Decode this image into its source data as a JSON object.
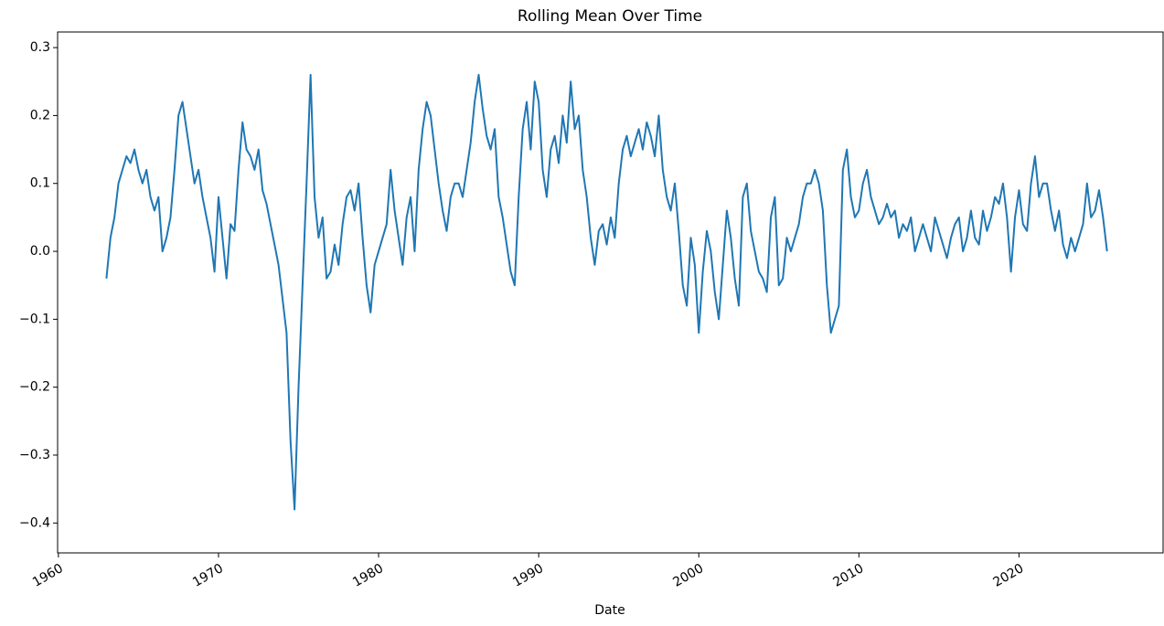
{
  "chart_data": {
    "type": "line",
    "title": "Rolling Mean Over Time",
    "x_label": "Date",
    "color": "#1f77b4",
    "xlim": [
      1959.95,
      2029.0
    ],
    "ylim": [
      -0.444,
      0.323
    ],
    "xticks": [
      1960,
      1970,
      1980,
      1990,
      2000,
      2010,
      2020
    ],
    "yticks": [
      {
        "value": -0.4,
        "label": "−0.4"
      },
      {
        "value": -0.3,
        "label": "−0.3"
      },
      {
        "value": -0.2,
        "label": "−0.2"
      },
      {
        "value": -0.1,
        "label": "−0.1"
      },
      {
        "value": 0,
        "label": "0.0"
      },
      0.1,
      0.2,
      0.3
    ],
    "grid": false,
    "x": [
      1963,
      1963.25,
      1963.5,
      1963.75,
      1964,
      1964.25,
      1964.5,
      1964.75,
      1965,
      1965.25,
      1965.5,
      1965.75,
      1966,
      1966.25,
      1966.5,
      1966.75,
      1967,
      1967.25,
      1967.5,
      1967.75,
      1968,
      1968.25,
      1968.5,
      1968.75,
      1969,
      1969.25,
      1969.5,
      1969.75,
      1970,
      1970.25,
      1970.5,
      1970.75,
      1971,
      1971.25,
      1971.5,
      1971.75,
      1972,
      1972.25,
      1972.5,
      1972.75,
      1973,
      1973.25,
      1973.5,
      1973.75,
      1974,
      1974.25,
      1974.5,
      1974.75,
      1975,
      1975.25,
      1975.5,
      1975.75,
      1976,
      1976.25,
      1976.5,
      1976.75,
      1977,
      1977.25,
      1977.5,
      1977.75,
      1978,
      1978.25,
      1978.5,
      1978.75,
      1979,
      1979.25,
      1979.5,
      1979.75,
      1980,
      1980.25,
      1980.5,
      1980.75,
      1981,
      1981.25,
      1981.5,
      1981.75,
      1982,
      1982.25,
      1982.5,
      1982.75,
      1983,
      1983.25,
      1983.5,
      1983.75,
      1984,
      1984.25,
      1984.5,
      1984.75,
      1985,
      1985.25,
      1985.5,
      1985.75,
      1986,
      1986.25,
      1986.5,
      1986.75,
      1987,
      1987.25,
      1987.5,
      1987.75,
      1988,
      1988.25,
      1988.5,
      1988.75,
      1989,
      1989.25,
      1989.5,
      1989.75,
      1990,
      1990.25,
      1990.5,
      1990.75,
      1991,
      1991.25,
      1991.5,
      1991.75,
      1992,
      1992.25,
      1992.5,
      1992.75,
      1993,
      1993.25,
      1993.5,
      1993.75,
      1994,
      1994.25,
      1994.5,
      1994.75,
      1995,
      1995.25,
      1995.5,
      1995.75,
      1996,
      1996.25,
      1996.5,
      1996.75,
      1997,
      1997.25,
      1997.5,
      1997.75,
      1998,
      1998.25,
      1998.5,
      1998.75,
      1999,
      1999.25,
      1999.5,
      1999.75,
      2000,
      2000.25,
      2000.5,
      2000.75,
      2001,
      2001.25,
      2001.5,
      2001.75,
      2002,
      2002.25,
      2002.5,
      2002.75,
      2003,
      2003.25,
      2003.5,
      2003.75,
      2004,
      2004.25,
      2004.5,
      2004.75,
      2005,
      2005.25,
      2005.5,
      2005.75,
      2006,
      2006.25,
      2006.5,
      2006.75,
      2007,
      2007.25,
      2007.5,
      2007.75,
      2008,
      2008.25,
      2008.5,
      2008.75,
      2009,
      2009.25,
      2009.5,
      2009.75,
      2010,
      2010.25,
      2010.5,
      2010.75,
      2011,
      2011.25,
      2011.5,
      2011.75,
      2012,
      2012.25,
      2012.5,
      2012.75,
      2013,
      2013.25,
      2013.5,
      2013.75,
      2014,
      2014.25,
      2014.5,
      2014.75,
      2015,
      2015.25,
      2015.5,
      2015.75,
      2016,
      2016.25,
      2016.5,
      2016.75,
      2017,
      2017.25,
      2017.5,
      2017.75,
      2018,
      2018.25,
      2018.5,
      2018.75,
      2019,
      2019.25,
      2019.5,
      2019.75,
      2020,
      2020.25,
      2020.5,
      2020.75,
      2021,
      2021.25,
      2021.5,
      2021.75,
      2022,
      2022.25,
      2022.5,
      2022.75,
      2023,
      2023.25,
      2023.5,
      2023.75,
      2024,
      2024.25,
      2024.5,
      2024.75,
      2025,
      2025.25,
      2025.5
    ],
    "values": [
      -0.04,
      0.02,
      0.05,
      0.1,
      0.12,
      0.14,
      0.13,
      0.15,
      0.12,
      0.1,
      0.12,
      0.08,
      0.06,
      0.08,
      0.0,
      0.02,
      0.05,
      0.12,
      0.2,
      0.22,
      0.18,
      0.14,
      0.1,
      0.12,
      0.08,
      0.05,
      0.02,
      -0.03,
      0.08,
      0.02,
      -0.04,
      0.04,
      0.03,
      0.12,
      0.19,
      0.15,
      0.14,
      0.12,
      0.15,
      0.09,
      0.07,
      0.04,
      0.01,
      -0.02,
      -0.07,
      -0.12,
      -0.28,
      -0.38,
      -0.2,
      -0.05,
      0.1,
      0.26,
      0.08,
      0.02,
      0.05,
      -0.04,
      -0.03,
      0.01,
      -0.02,
      0.04,
      0.08,
      0.09,
      0.06,
      0.1,
      0.02,
      -0.05,
      -0.09,
      -0.02,
      0.0,
      0.02,
      0.04,
      0.12,
      0.06,
      0.02,
      -0.02,
      0.05,
      0.08,
      0.0,
      0.12,
      0.18,
      0.22,
      0.2,
      0.15,
      0.1,
      0.06,
      0.03,
      0.08,
      0.1,
      0.1,
      0.08,
      0.12,
      0.16,
      0.22,
      0.26,
      0.21,
      0.17,
      0.15,
      0.18,
      0.08,
      0.05,
      0.01,
      -0.03,
      -0.05,
      0.08,
      0.18,
      0.22,
      0.15,
      0.25,
      0.22,
      0.12,
      0.08,
      0.15,
      0.17,
      0.13,
      0.2,
      0.16,
      0.25,
      0.18,
      0.2,
      0.12,
      0.08,
      0.02,
      -0.02,
      0.03,
      0.04,
      0.01,
      0.05,
      0.02,
      0.1,
      0.15,
      0.17,
      0.14,
      0.16,
      0.18,
      0.15,
      0.19,
      0.17,
      0.14,
      0.2,
      0.12,
      0.08,
      0.06,
      0.1,
      0.03,
      -0.05,
      -0.08,
      0.02,
      -0.02,
      -0.12,
      -0.03,
      0.03,
      0.0,
      -0.06,
      -0.1,
      -0.02,
      0.06,
      0.02,
      -0.04,
      -0.08,
      0.08,
      0.1,
      0.03,
      0.0,
      -0.03,
      -0.04,
      -0.06,
      0.05,
      0.08,
      -0.05,
      -0.04,
      0.02,
      0.0,
      0.02,
      0.04,
      0.08,
      0.1,
      0.1,
      0.12,
      0.1,
      0.06,
      -0.05,
      -0.12,
      -0.1,
      -0.08,
      0.12,
      0.15,
      0.08,
      0.05,
      0.06,
      0.1,
      0.12,
      0.08,
      0.06,
      0.04,
      0.05,
      0.07,
      0.05,
      0.06,
      0.02,
      0.04,
      0.03,
      0.05,
      0.0,
      0.02,
      0.04,
      0.02,
      0.0,
      0.05,
      0.03,
      0.01,
      -0.01,
      0.02,
      0.04,
      0.05,
      0.0,
      0.02,
      0.06,
      0.02,
      0.01,
      0.06,
      0.03,
      0.05,
      0.08,
      0.07,
      0.1,
      0.05,
      -0.03,
      0.05,
      0.09,
      0.04,
      0.03,
      0.1,
      0.14,
      0.08,
      0.1,
      0.1,
      0.06,
      0.03,
      0.06,
      0.01,
      -0.01,
      0.02,
      0.0,
      0.02,
      0.04,
      0.1,
      0.05,
      0.06,
      0.09,
      0.05,
      0.0
    ]
  }
}
